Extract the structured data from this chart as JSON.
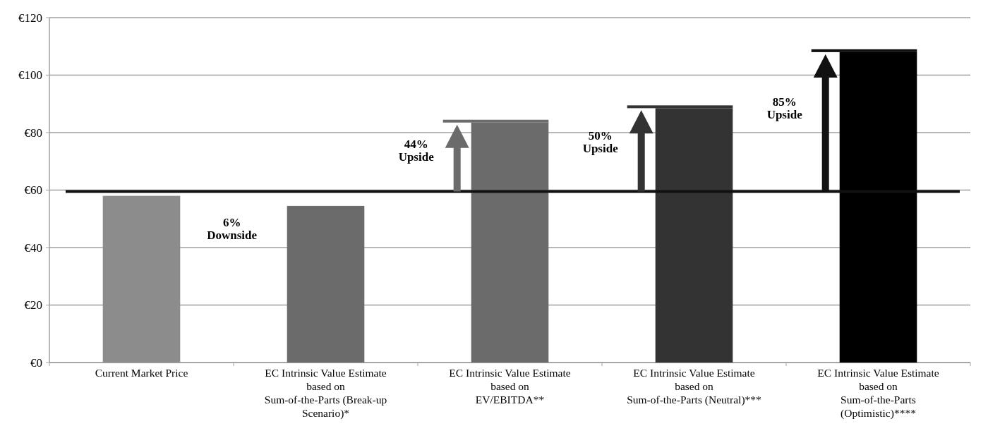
{
  "chart_data": {
    "type": "bar",
    "categories": [
      "Current Market Price",
      "EC Intrinsic Value Estimate\nbased on\nSum-of-the-Parts (Break-up\nScenario)*",
      "EC Intrinsic Value Estimate\nbased on\nEV/EBITDA**",
      "EC Intrinsic Value Estimate\nbased on\nSum-of-the-Parts (Neutral)***",
      "EC Intrinsic Value Estimate\nbased on\nSum-of-the-Parts\n(Optimistic)****"
    ],
    "values": [
      58,
      54.5,
      83.5,
      88.5,
      108
    ],
    "colors": [
      "#8c8c8c",
      "#6b6b6b",
      "#6b6b6b",
      "#333333",
      "#000000"
    ],
    "ylim": [
      0,
      120
    ],
    "yticks": [
      {
        "value": 0,
        "label": "€0"
      },
      {
        "value": 20,
        "label": "€20"
      },
      {
        "value": 40,
        "label": "€40"
      },
      {
        "value": 60,
        "label": "€60"
      },
      {
        "value": 80,
        "label": "€80"
      },
      {
        "value": 100,
        "label": "€100"
      },
      {
        "value": 120,
        "label": "€120"
      }
    ],
    "grid": "y",
    "ref_lines": [
      {
        "axis": "y",
        "value": 59.5,
        "color": "#111111"
      }
    ],
    "annotations": [
      "6%\nDownside",
      "44%\nUpside",
      "50%\nUpside",
      "85%\nUpside"
    ]
  }
}
